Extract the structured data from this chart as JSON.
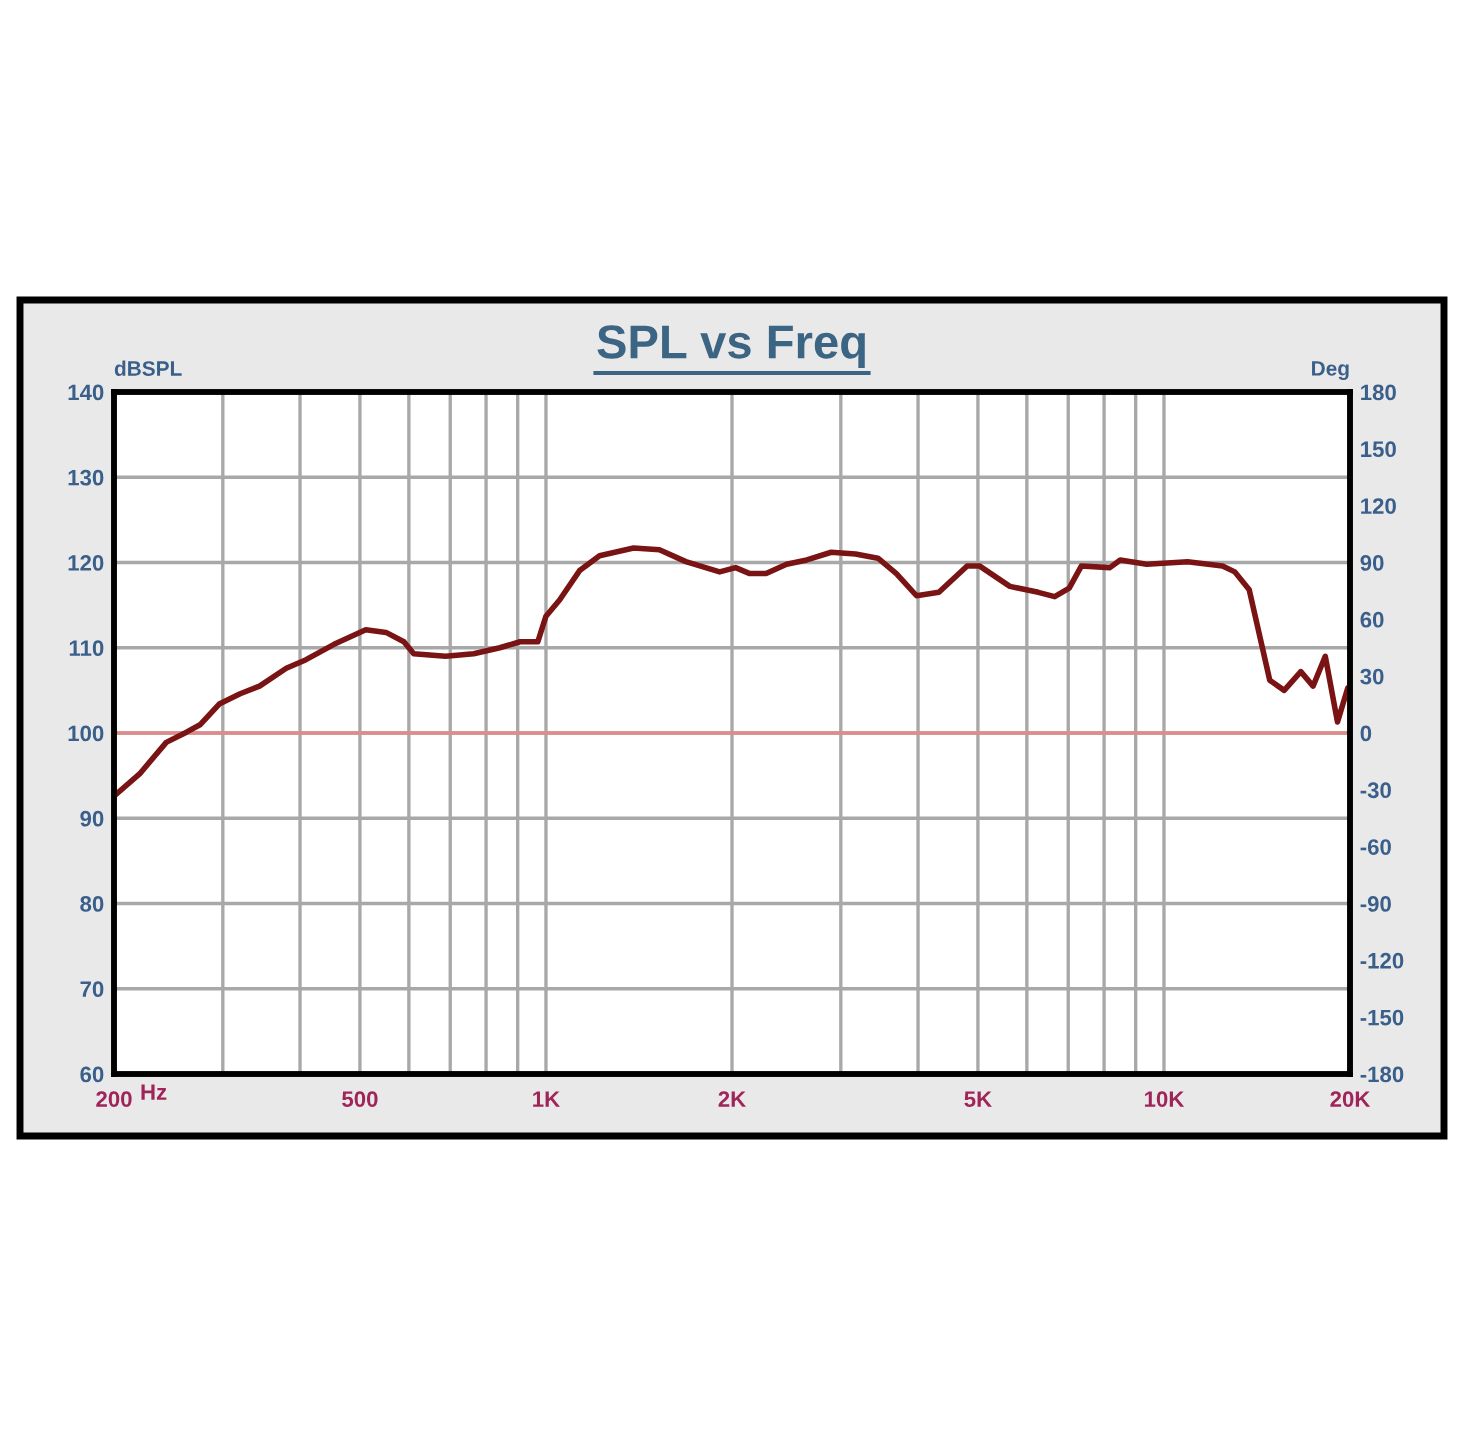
{
  "chart_data": {
    "type": "line",
    "title": "SPL vs Freq",
    "ylabel": "dBSPL",
    "y2label": "Deg",
    "xlabel": "Hz",
    "log": "x",
    "grid": true,
    "marker": "none",
    "line_style": "solid",
    "xlim": [
      200,
      20000
    ],
    "xticks": [
      {
        "value": 200,
        "label": "200"
      },
      {
        "value": 300,
        "label": null
      },
      {
        "value": 400,
        "label": null
      },
      {
        "value": 500,
        "label": "500"
      },
      {
        "value": 600,
        "label": null
      },
      {
        "value": 700,
        "label": null
      },
      {
        "value": 800,
        "label": null
      },
      {
        "value": 900,
        "label": null
      },
      {
        "value": 1000,
        "label": "1K"
      },
      {
        "value": 2000,
        "label": "2K"
      },
      {
        "value": 3000,
        "label": null
      },
      {
        "value": 4000,
        "label": null
      },
      {
        "value": 5000,
        "label": "5K"
      },
      {
        "value": 6000,
        "label": null
      },
      {
        "value": 7000,
        "label": null
      },
      {
        "value": 8000,
        "label": null
      },
      {
        "value": 9000,
        "label": null
      },
      {
        "value": 10000,
        "label": "10K"
      },
      {
        "value": 20000,
        "label": "20K"
      }
    ],
    "ylim": [
      60,
      140
    ],
    "yticks": [
      60,
      70,
      80,
      90,
      100,
      110,
      120,
      130,
      140
    ],
    "y2lim": [
      -180,
      180
    ],
    "y2ticks": [
      -180,
      -150,
      -120,
      -90,
      -60,
      -30,
      0,
      30,
      60,
      90,
      120,
      150,
      180
    ],
    "ref_lines": [
      {
        "axis": "y",
        "value": 100,
        "color": "#e08a8a"
      }
    ],
    "series": [
      {
        "color": "#7a1414",
        "x": [
          200,
          220,
          243,
          262,
          276,
          296,
          320,
          344,
          380,
          409,
          454,
          511,
          551,
          589,
          611,
          688,
          764,
          842,
          908,
          970,
          1000,
          1052,
          1135,
          1221,
          1386,
          1526,
          1684,
          1910,
          2027,
          2137,
          2271,
          2451,
          2643,
          2895,
          3169,
          3445,
          3690,
          3978,
          4323,
          4803,
          5027,
          5632,
          6262,
          6655,
          7026,
          7353,
          8176,
          8496,
          9377,
          10920,
          12440,
          13020,
          13740,
          14830,
          15650,
          16650,
          17430,
          18240,
          19090,
          19840,
          20000
        ],
        "values": [
          92.6,
          95.2,
          98.9,
          100.1,
          101,
          103.4,
          104.6,
          105.5,
          107.6,
          108.6,
          110.4,
          112.1,
          111.8,
          110.7,
          109.3,
          109,
          109.3,
          110,
          110.7,
          110.7,
          113.7,
          115.6,
          119.1,
          120.8,
          121.7,
          121.5,
          120.1,
          118.9,
          119.4,
          118.7,
          118.7,
          119.8,
          120.3,
          121.2,
          121,
          120.5,
          118.7,
          116.1,
          116.5,
          119.6,
          119.6,
          117.2,
          116.5,
          116,
          117,
          119.6,
          119.4,
          120.3,
          119.8,
          120.1,
          119.6,
          118.9,
          116.8,
          106.2,
          105,
          107.2,
          105.5,
          109,
          101.3,
          105.3,
          105.3
        ]
      }
    ]
  }
}
